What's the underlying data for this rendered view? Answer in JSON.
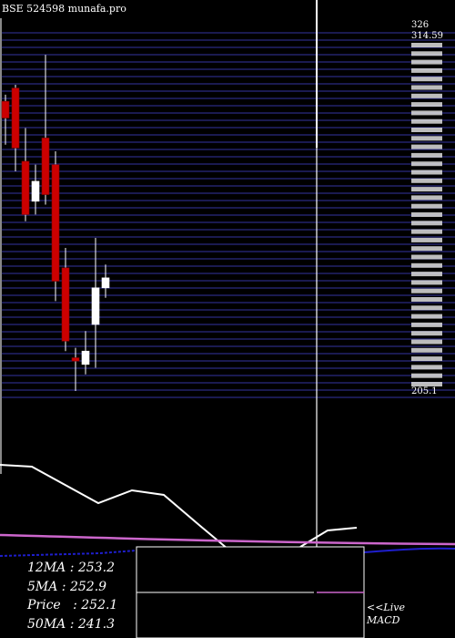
{
  "title": "BSE 524598  munafa.pro",
  "live_label": "<<Live",
  "macd_label": "MACD",
  "stats": [
    {
      "label": "12MA",
      "value": "253.2"
    },
    {
      "label": "5MA",
      "value": "252.9"
    },
    {
      "label": "Price",
      "value": "252.1"
    },
    {
      "label": "50MA",
      "value": "241.3"
    }
  ],
  "colors": {
    "background": "#000000",
    "grid": "#2b2b80",
    "up_candle": "#ffffff",
    "down_candle": "#cc0000",
    "wick": "#ffffff",
    "ma_line": "#ffffff",
    "pink_line": "#cc66cc",
    "blue_line": "#1e1ecc"
  },
  "chart_data": {
    "type": "candlestick",
    "ylim": [
      205.1,
      314.59
    ],
    "price_labels_top": [
      "326",
      "314.59"
    ],
    "price_labels_bottom": [
      "205.1"
    ],
    "candles": [
      {
        "open": 294,
        "high": 296,
        "low": 281,
        "close": 289
      },
      {
        "open": 298,
        "high": 299,
        "low": 273,
        "close": 280
      },
      {
        "open": 276,
        "high": 286,
        "low": 258,
        "close": 260
      },
      {
        "open": 264,
        "high": 275,
        "low": 260,
        "close": 270
      },
      {
        "open": 283,
        "high": 308,
        "low": 263,
        "close": 266
      },
      {
        "open": 275,
        "high": 279,
        "low": 234,
        "close": 240
      },
      {
        "open": 244,
        "high": 250,
        "low": 219,
        "close": 222
      },
      {
        "open": 217,
        "high": 220,
        "low": 207,
        "close": 216
      },
      {
        "open": 215,
        "high": 225,
        "low": 212,
        "close": 219
      },
      {
        "open": 227,
        "high": 253,
        "low": 214,
        "close": 238
      },
      {
        "open": 238,
        "high": 245,
        "low": 235,
        "close": 241
      }
    ],
    "indicator_lines": [
      {
        "points": [
          [
            0,
            510
          ],
          [
            35,
            512
          ],
          [
            108,
            552
          ],
          [
            145,
            538
          ],
          [
            180,
            543
          ],
          [
            220,
            577
          ],
          [
            250,
            602
          ]
        ]
      },
      {
        "points": [
          [
            330,
            600
          ],
          [
            360,
            582
          ],
          [
            392,
            579
          ]
        ]
      }
    ]
  }
}
